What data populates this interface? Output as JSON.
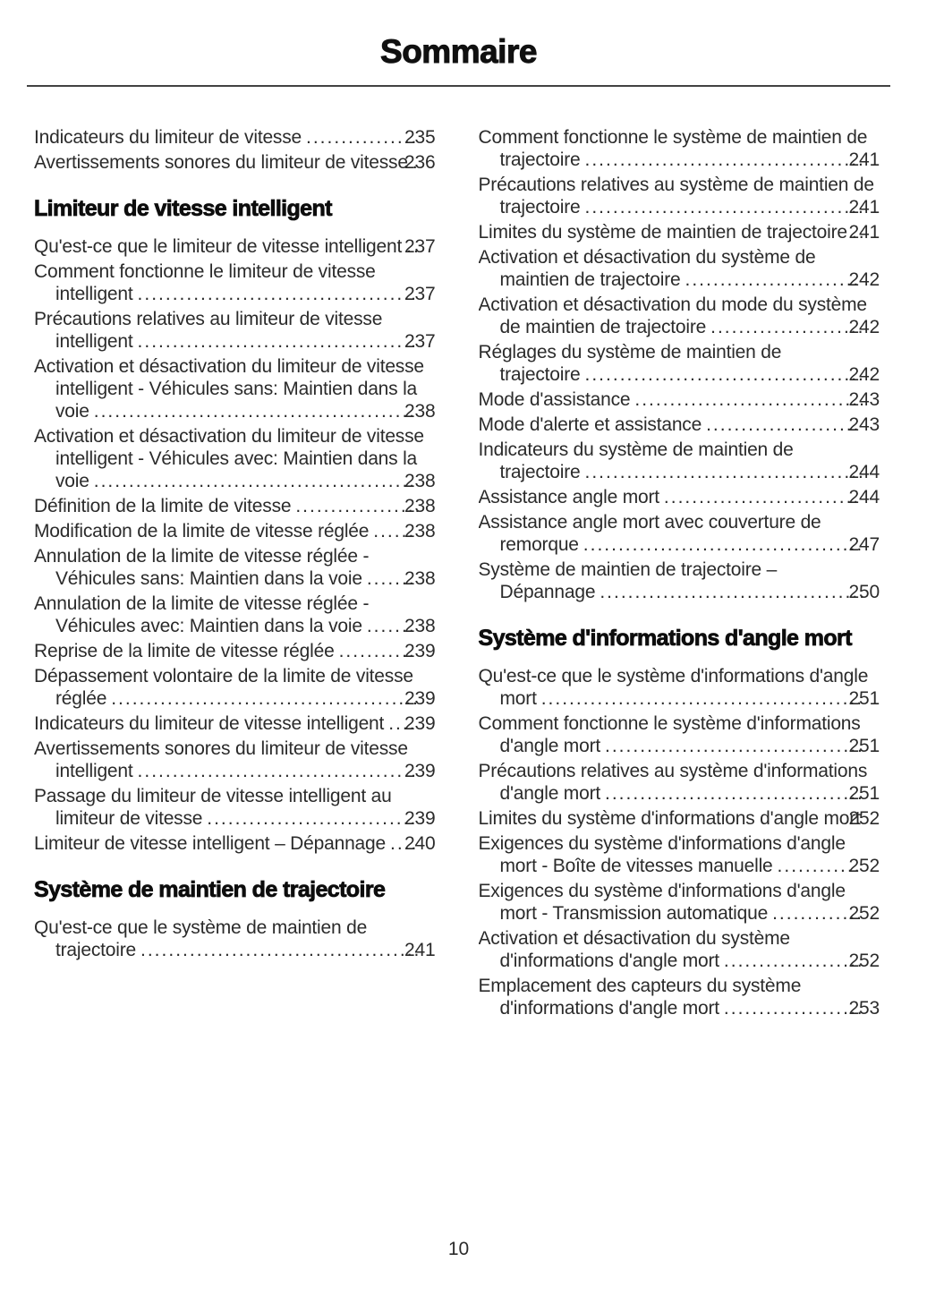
{
  "document": {
    "title": "Sommaire",
    "page_number": "10"
  },
  "left": [
    {
      "type": "entry",
      "title": "Indicateurs du limiteur de vitesse",
      "page": "235"
    },
    {
      "type": "entry",
      "title": "Avertissements sonores du limiteur de vitesse",
      "page": "236"
    },
    {
      "type": "heading",
      "text": "Limiteur de vitesse intelligent"
    },
    {
      "type": "entry",
      "title": "Qu'est-ce que le limiteur de vitesse intelligent",
      "page": "237"
    },
    {
      "type": "entry",
      "title": "Comment fonctionne le limiteur de vitesse intelligent",
      "page": "237"
    },
    {
      "type": "entry",
      "title": "Précautions relatives au limiteur de vitesse intelligent",
      "page": "237"
    },
    {
      "type": "entry",
      "title": "Activation et désactivation du limiteur de vitesse intelligent - Véhicules sans: Maintien dans la voie",
      "page": "238"
    },
    {
      "type": "entry",
      "title": "Activation et désactivation du limiteur de vitesse intelligent - Véhicules avec: Maintien dans la voie",
      "page": "238"
    },
    {
      "type": "entry",
      "title": "Définition de la limite de vitesse",
      "page": "238"
    },
    {
      "type": "entry",
      "title": "Modification de la limite de vitesse réglée",
      "page": "238"
    },
    {
      "type": "entry",
      "title": "Annulation de la limite de vitesse réglée - Véhicules sans: Maintien dans la voie",
      "page": "238"
    },
    {
      "type": "entry",
      "title": "Annulation de la limite de vitesse réglée - Véhicules avec: Maintien dans la voie",
      "page": "238"
    },
    {
      "type": "entry",
      "title": "Reprise de la limite de vitesse réglée",
      "page": "239"
    },
    {
      "type": "entry",
      "title": "Dépassement volontaire de la limite de vitesse réglée",
      "page": "239"
    },
    {
      "type": "entry",
      "title": "Indicateurs du limiteur de vitesse intelligent",
      "page": "239"
    },
    {
      "type": "entry",
      "title": "Avertissements sonores du limiteur de vitesse intelligent",
      "page": "239"
    },
    {
      "type": "entry",
      "title": "Passage du limiteur de vitesse intelligent au limiteur de vitesse",
      "page": "239"
    },
    {
      "type": "entry",
      "title": "Limiteur de vitesse intelligent – Dépannage",
      "page": "240"
    },
    {
      "type": "heading",
      "text": "Système de maintien de trajectoire"
    },
    {
      "type": "entry",
      "title": "Qu'est-ce que le système de maintien de trajectoire",
      "page": "241"
    }
  ],
  "right": [
    {
      "type": "entry",
      "title": "Comment fonctionne le système de maintien de trajectoire",
      "page": "241"
    },
    {
      "type": "entry",
      "title": "Précautions relatives au système de maintien de trajectoire",
      "page": "241"
    },
    {
      "type": "entry",
      "title": "Limites du système de maintien de trajectoire",
      "page": "241"
    },
    {
      "type": "entry",
      "title": "Activation et désactivation du système de maintien de trajectoire",
      "page": "242"
    },
    {
      "type": "entry",
      "title": "Activation et désactivation du mode du système de maintien de trajectoire",
      "page": "242"
    },
    {
      "type": "entry",
      "title": "Réglages du système de maintien de trajectoire",
      "page": "242"
    },
    {
      "type": "entry",
      "title": "Mode d'assistance",
      "page": "243"
    },
    {
      "type": "entry",
      "title": "Mode d'alerte et assistance",
      "page": "243"
    },
    {
      "type": "entry",
      "title": "Indicateurs du système de maintien de trajectoire",
      "page": "244"
    },
    {
      "type": "entry",
      "title": "Assistance angle mort",
      "page": "244"
    },
    {
      "type": "entry",
      "title": "Assistance angle mort avec couverture de remorque",
      "page": "247"
    },
    {
      "type": "entry",
      "title": "Système de maintien de trajectoire – Dépannage",
      "page": "250"
    },
    {
      "type": "heading",
      "text": "Système d'informations d'angle mort"
    },
    {
      "type": "entry",
      "title": "Qu'est-ce que le système d'informations d'angle mort",
      "page": "251"
    },
    {
      "type": "entry",
      "title": "Comment fonctionne le système d'informations d'angle mort",
      "page": "251"
    },
    {
      "type": "entry",
      "title": "Précautions relatives au système d'informations d'angle mort",
      "page": "251"
    },
    {
      "type": "entry",
      "title": "Limites du système d'informations d'angle mort",
      "page": "252"
    },
    {
      "type": "entry",
      "title": "Exigences du système d'informations d'angle mort - Boîte de vitesses manuelle",
      "page": "252"
    },
    {
      "type": "entry",
      "title": "Exigences du système d'informations d'angle mort - Transmission automatique",
      "page": "252"
    },
    {
      "type": "entry",
      "title": "Activation et désactivation du système d'informations d'angle mort",
      "page": "252"
    },
    {
      "type": "entry",
      "title": "Emplacement des capteurs du système d'informations d'angle mort",
      "page": "253"
    }
  ]
}
